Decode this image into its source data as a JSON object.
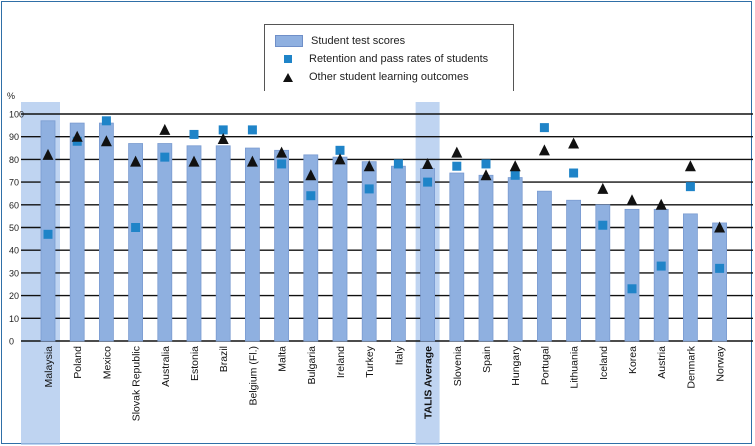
{
  "chart_data": {
    "type": "bar",
    "ylabel": "%",
    "ylim": [
      0,
      100
    ],
    "yticks": [
      0,
      10,
      20,
      30,
      40,
      50,
      60,
      70,
      80,
      90,
      100
    ],
    "grid": true,
    "categories": [
      "Malaysia",
      "Poland",
      "Mexico",
      "Slovak Republic",
      "Australia",
      "Estonia",
      "Brazil",
      "Belgium (Fl.)",
      "Malta",
      "Bulgaria",
      "Ireland",
      "Turkey",
      "Italy",
      "TALIS Average",
      "Slovenia",
      "Spain",
      "Hungary",
      "Portugal",
      "Lithuania",
      "Iceland",
      "Korea",
      "Austria",
      "Denmark",
      "Norway"
    ],
    "highlighted_categories": [
      "Malaysia",
      "TALIS Average"
    ],
    "series": [
      {
        "name": "Student test scores",
        "kind": "bar",
        "color": "#8fb0e0",
        "values": [
          97,
          96,
          96,
          87,
          87,
          86,
          86,
          85,
          84,
          82,
          81,
          79,
          77,
          76,
          74,
          73,
          72,
          66,
          62,
          60,
          58,
          58,
          56,
          52
        ]
      },
      {
        "name": "Retention and pass rates of students",
        "kind": "marker-square",
        "color": "#1f84c8",
        "values": [
          47,
          88,
          97,
          50,
          81,
          91,
          93,
          93,
          78,
          64,
          84,
          67,
          78,
          70,
          77,
          78,
          73,
          94,
          74,
          51,
          23,
          33,
          68,
          32
        ]
      },
      {
        "name": "Other student learning outcomes",
        "kind": "marker-triangle",
        "color": "#111111",
        "values": [
          82,
          90,
          88,
          79,
          93,
          79,
          89,
          79,
          83,
          73,
          80,
          77,
          null,
          78,
          83,
          73,
          77,
          84,
          87,
          67,
          62,
          60,
          77,
          50
        ]
      }
    ]
  }
}
